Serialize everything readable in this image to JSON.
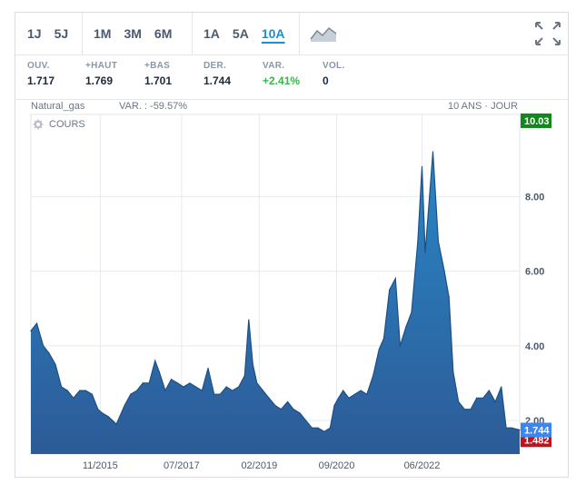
{
  "toolbar": {
    "group1": [
      "1J",
      "5J"
    ],
    "group2": [
      "1M",
      "3M",
      "6M"
    ],
    "group3": [
      "1A",
      "5A",
      "10A"
    ],
    "active": "10A",
    "chart_type_icon": "area-chart-icon",
    "expand_icon": "expand-icon"
  },
  "stats": [
    {
      "label": "OUV.",
      "value": "1.717"
    },
    {
      "label": "+HAUT",
      "value": "1.769"
    },
    {
      "label": "+BAS",
      "value": "1.701"
    },
    {
      "label": "DER.",
      "value": "1.744"
    },
    {
      "label": "VAR.",
      "value": "+2.41%"
    },
    {
      "label": "VOL.",
      "value": "0"
    }
  ],
  "chart_header": {
    "symbol": "Natural_gas",
    "variation": "VAR. : -59.57%",
    "period": "10 ANS · JOUR"
  },
  "legend": {
    "label": "COURS",
    "icon": "gear-icon"
  },
  "colors": {
    "fill_top": "#2a86c6",
    "fill_bottom": "#2c5b97",
    "line": "#1e4f86",
    "max_badge": "#0f8a1a",
    "last_badge": "#3b86f0",
    "min_badge": "#c0121b",
    "positive": "#3bb54a",
    "accent": "#1a8fd1"
  },
  "chart_data": {
    "type": "area",
    "ylim": [
      1.1,
      10.2
    ],
    "y_ticks": [
      2.0,
      4.0,
      6.0,
      8.0
    ],
    "y_tick_labels": [
      "2.00",
      "4.00",
      "6.00",
      "8.00"
    ],
    "x_tick_labels": [
      "11/2015",
      "07/2017",
      "02/2019",
      "09/2020",
      "06/2022"
    ],
    "x_tick_dates": [
      "2015-11-01",
      "2017-07-01",
      "2019-02-01",
      "2020-09-01",
      "2022-06-01"
    ],
    "xlim": [
      "2014-06-01",
      "2024-05-31"
    ],
    "grid": true,
    "markers": {
      "max": "10.03",
      "last": "1.744",
      "min": "1.482"
    },
    "series": [
      {
        "x": [
          "2014-06-01",
          "2014-07-15",
          "2014-09-01",
          "2014-10-15",
          "2014-12-01",
          "2015-01-15",
          "2015-03-01",
          "2015-04-15",
          "2015-06-01",
          "2015-07-15",
          "2015-09-01",
          "2015-10-15",
          "2015-11-15",
          "2016-01-01",
          "2016-03-01",
          "2016-05-01",
          "2016-06-15",
          "2016-08-01",
          "2016-09-15",
          "2016-11-01",
          "2016-12-15",
          "2017-01-15",
          "2017-03-01",
          "2017-04-15",
          "2017-06-01",
          "2017-07-15",
          "2017-09-01",
          "2017-10-15",
          "2017-12-01",
          "2018-01-15",
          "2018-03-01",
          "2018-04-15",
          "2018-06-01",
          "2018-07-15",
          "2018-09-01",
          "2018-10-15",
          "2018-11-15",
          "2018-12-15",
          "2019-01-15",
          "2019-03-01",
          "2019-04-15",
          "2019-06-01",
          "2019-07-15",
          "2019-09-01",
          "2019-10-15",
          "2019-12-01",
          "2020-01-15",
          "2020-03-01",
          "2020-04-15",
          "2020-06-01",
          "2020-07-15",
          "2020-08-15",
          "2020-09-15",
          "2020-10-20",
          "2020-12-01",
          "2021-01-15",
          "2021-03-01",
          "2021-04-15",
          "2021-06-01",
          "2021-07-15",
          "2021-08-20",
          "2021-10-01",
          "2021-11-15",
          "2021-12-20",
          "2022-02-01",
          "2022-03-15",
          "2022-05-01",
          "2022-06-01",
          "2022-06-25",
          "2022-08-01",
          "2022-08-22",
          "2022-10-01",
          "2022-11-15",
          "2022-12-20",
          "2023-01-20",
          "2023-03-01",
          "2023-04-15",
          "2023-06-01",
          "2023-07-15",
          "2023-09-01",
          "2023-10-15",
          "2023-12-01",
          "2024-01-15",
          "2024-02-20",
          "2024-04-01",
          "2024-05-31"
        ],
        "y": [
          4.4,
          4.6,
          4.0,
          3.8,
          3.5,
          2.9,
          2.8,
          2.6,
          2.8,
          2.8,
          2.7,
          2.3,
          2.2,
          2.1,
          1.9,
          2.4,
          2.7,
          2.8,
          3.0,
          3.0,
          3.6,
          3.3,
          2.8,
          3.1,
          3.0,
          2.9,
          3.0,
          2.9,
          2.8,
          3.4,
          2.7,
          2.7,
          2.9,
          2.8,
          2.9,
          3.2,
          4.7,
          3.5,
          3.0,
          2.8,
          2.6,
          2.4,
          2.3,
          2.5,
          2.3,
          2.2,
          2.0,
          1.8,
          1.8,
          1.7,
          1.8,
          2.4,
          2.6,
          2.8,
          2.6,
          2.7,
          2.8,
          2.7,
          3.2,
          3.9,
          4.2,
          5.5,
          5.8,
          4.0,
          4.5,
          4.9,
          6.8,
          8.8,
          6.5,
          8.2,
          9.2,
          6.8,
          6.0,
          5.3,
          3.3,
          2.5,
          2.3,
          2.3,
          2.6,
          2.6,
          2.8,
          2.5,
          2.9,
          1.8,
          1.8,
          1.744
        ]
      }
    ]
  }
}
